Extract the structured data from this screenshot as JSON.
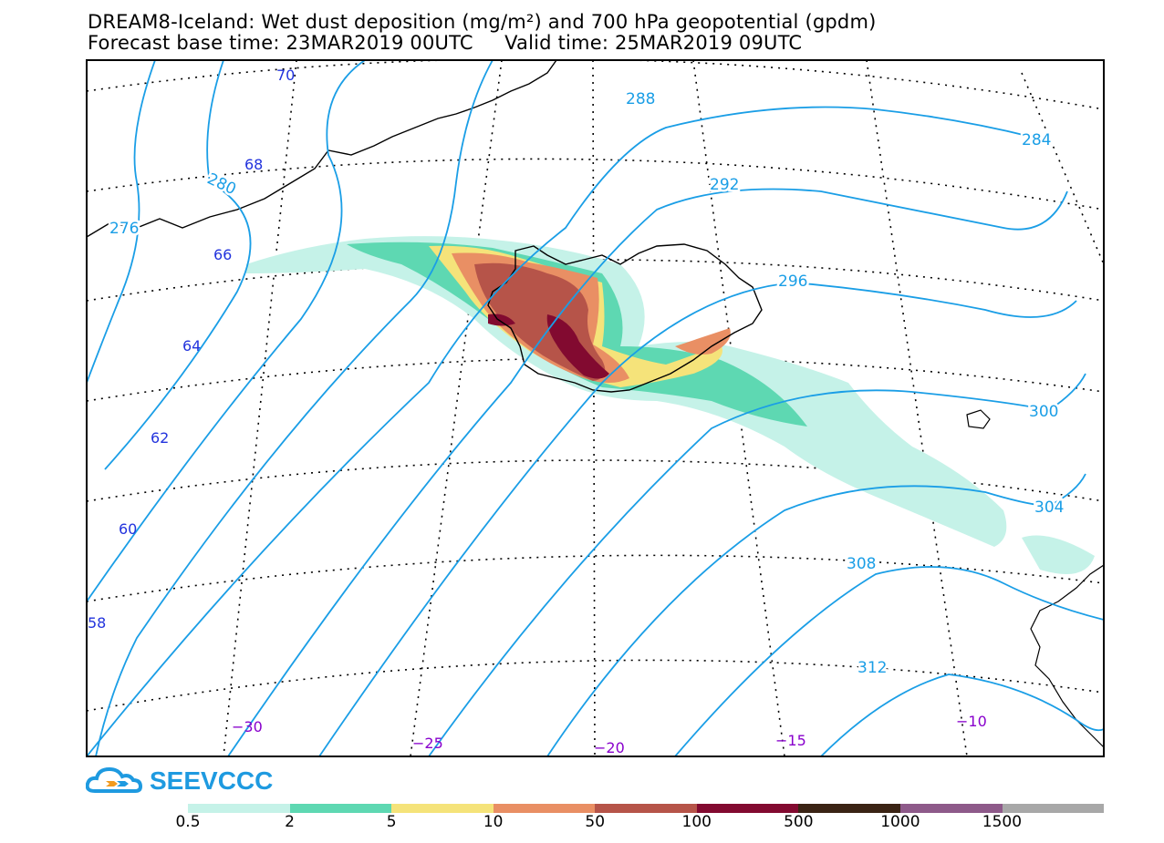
{
  "title": {
    "line1": "DREAM8-Iceland: Wet dust deposition (mg/m²) and 700 hPa geopotential (gpdm)",
    "line2": "Forecast base time: 23MAR2019 00UTC     Valid time: 25MAR2019 09UTC"
  },
  "logo": {
    "text": "SEEVCCC",
    "color": "#1e9ae0",
    "icon": "cloud-icon"
  },
  "latitude_labels": [
    "70",
    "68",
    "66",
    "64",
    "62",
    "60",
    "58"
  ],
  "longitude_labels": [
    "−30",
    "−25",
    "−20",
    "−15",
    "−10"
  ],
  "contour_labels": [
    "280",
    "276",
    "284",
    "288",
    "292",
    "296",
    "300",
    "304",
    "308",
    "312"
  ],
  "legend": {
    "colors": [
      "#c5f2e8",
      "#5ed8b2",
      "#f5e37a",
      "#e98f64",
      "#b65449",
      "#820a30",
      "#3a2314",
      "#8e5a8a",
      "#a8a8a8"
    ],
    "labels": [
      "0.5",
      "2",
      "5",
      "10",
      "50",
      "100",
      "500",
      "1000",
      "1500"
    ]
  },
  "colors": {
    "contour": "#1a9ee6",
    "lat_label": "#2233dd",
    "lon_label": "#8800cc"
  }
}
